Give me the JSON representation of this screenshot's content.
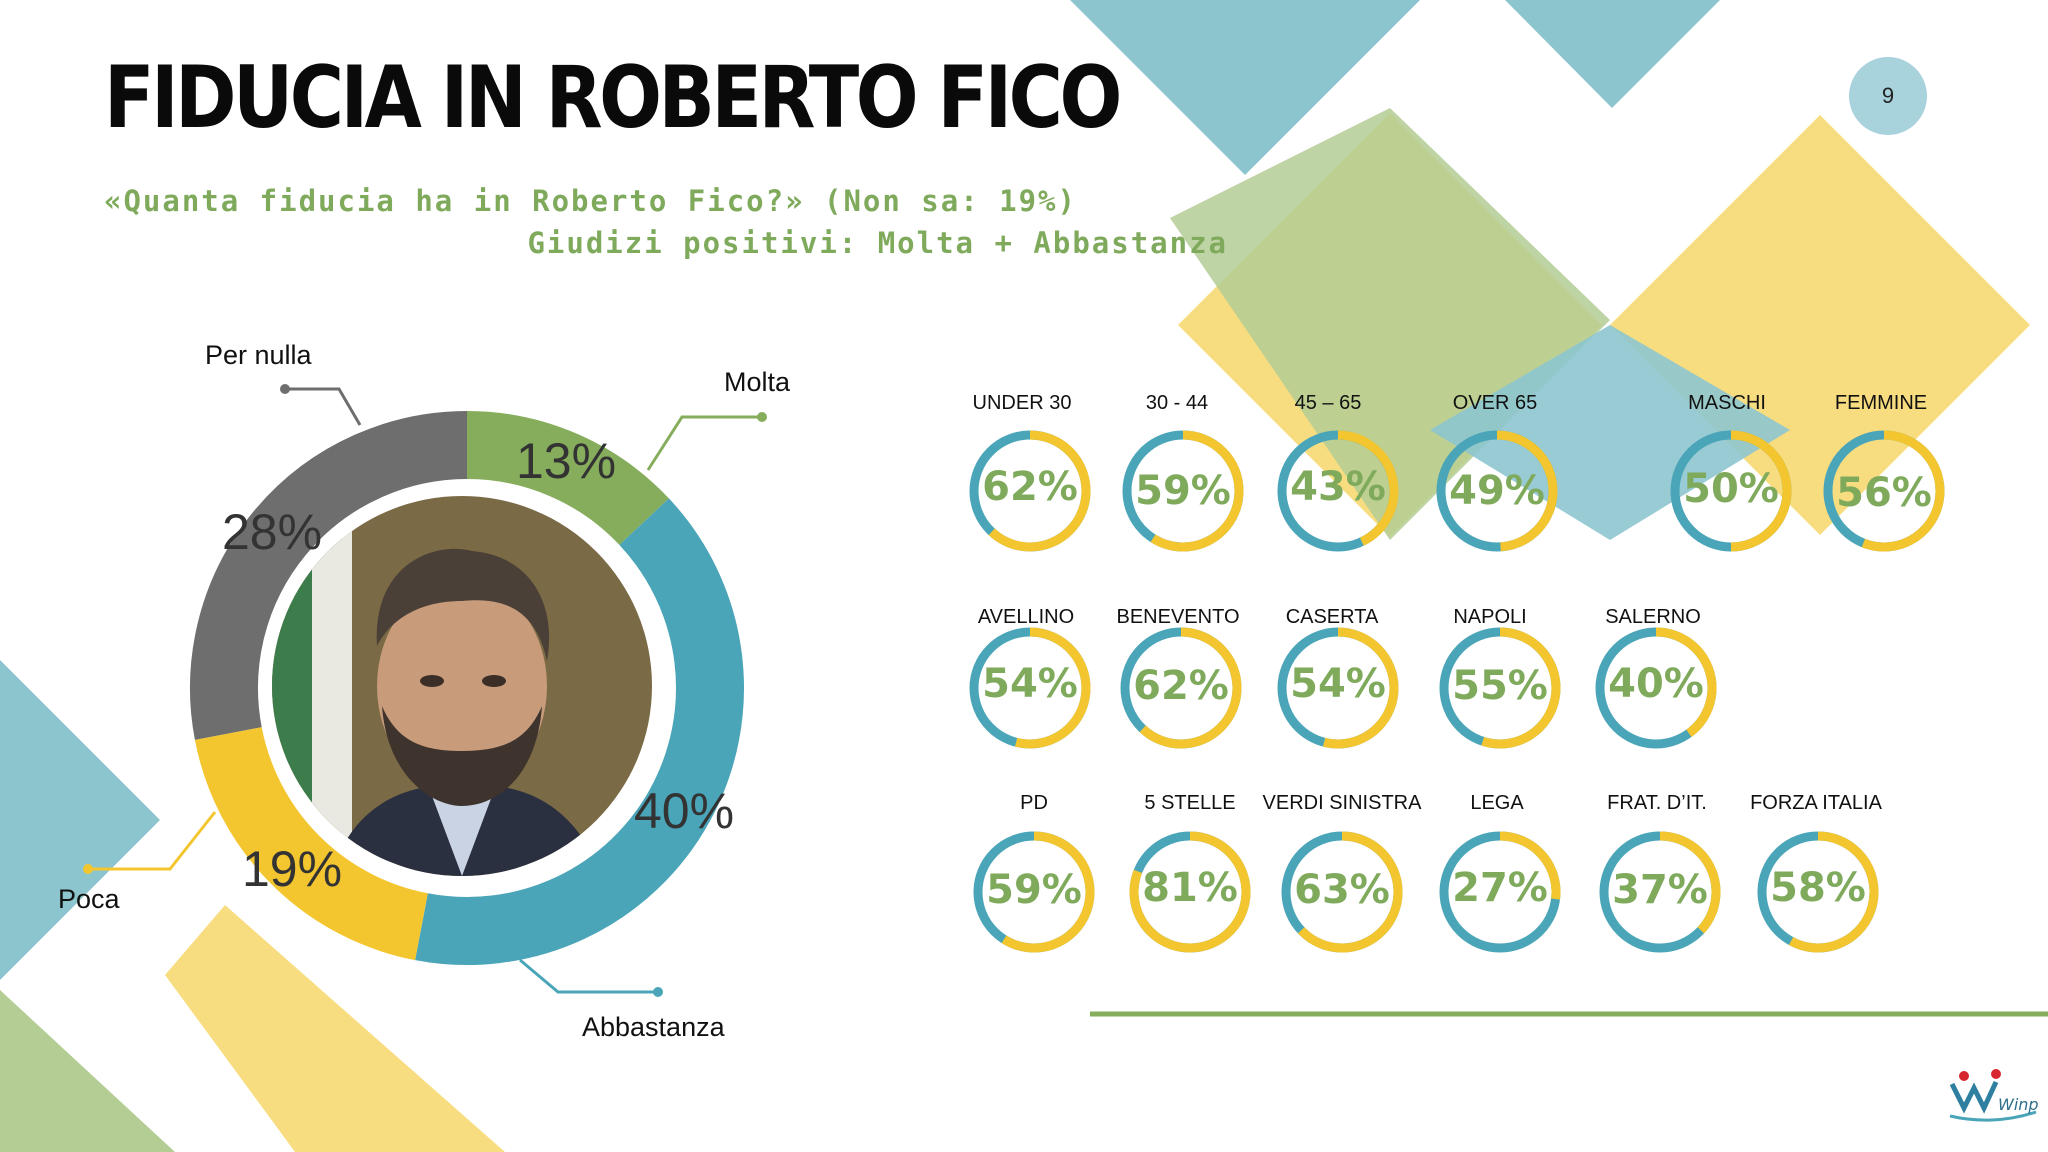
{
  "header": {
    "title": "FIDUCIA IN ROBERTO FICO",
    "question": "«Quanta fiducia ha in Roberto Fico?» (Non sa: 19%)",
    "positive_note": "Giudizi positivi: Molta + Abbastanza",
    "page_number": "9"
  },
  "colors": {
    "molta": "#86ad5c",
    "abbastanza": "#4aa5b8",
    "poca": "#f3c62f",
    "per_nulla": "#6e6e6e",
    "accent_text": "#7faa5c",
    "ring_teal": "#4aa5b8",
    "ring_yellow": "#f3c62f"
  },
  "chart_data": [
    {
      "type": "pie",
      "variant": "donut",
      "categories": [
        "Molta",
        "Abbastanza",
        "Poca",
        "Per nulla"
      ],
      "values": [
        13,
        40,
        19,
        28
      ],
      "labels": [
        "13%",
        "40%",
        "19%",
        "28%"
      ]
    },
    {
      "type": "table",
      "rows": [
        {
          "groups": [
            {
              "name": "UNDER 30",
              "value": 62,
              "label": "62%"
            },
            {
              "name": "30 - 44",
              "value": 59,
              "label": "59%"
            },
            {
              "name": "45 – 65",
              "value": 43,
              "label": "43%"
            },
            {
              "name": "OVER 65",
              "value": 49,
              "label": "49%"
            },
            {
              "name": "MASCHI",
              "value": 50,
              "label": "50%"
            },
            {
              "name": "FEMMINE",
              "value": 56,
              "label": "56%"
            }
          ]
        },
        {
          "groups": [
            {
              "name": "AVELLINO",
              "value": 54,
              "label": "54%"
            },
            {
              "name": "BENEVENTO",
              "value": 62,
              "label": "62%"
            },
            {
              "name": "CASERTA",
              "value": 54,
              "label": "54%"
            },
            {
              "name": "NAPOLI",
              "value": 55,
              "label": "55%"
            },
            {
              "name": "SALERNO",
              "value": 40,
              "label": "40%"
            }
          ]
        },
        {
          "groups": [
            {
              "name": "PD",
              "value": 59,
              "label": "59%"
            },
            {
              "name": "5 STELLE",
              "value": 81,
              "label": "81%"
            },
            {
              "name": "VERDI SINISTRA",
              "value": 63,
              "label": "63%"
            },
            {
              "name": "LEGA",
              "value": 27,
              "label": "27%"
            },
            {
              "name": "FRAT. D’IT.",
              "value": 37,
              "label": "37%"
            },
            {
              "name": "FORZA ITALIA",
              "value": 58,
              "label": "58%"
            }
          ]
        }
      ]
    }
  ],
  "logo": {
    "text": "Winpoll"
  }
}
